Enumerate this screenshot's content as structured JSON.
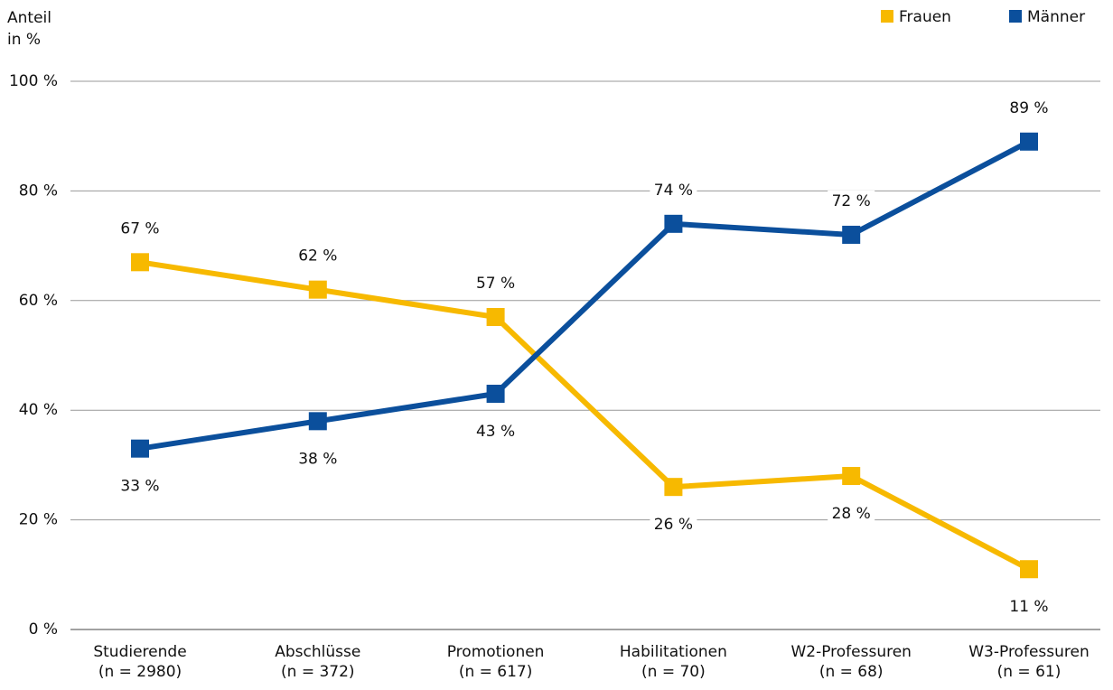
{
  "chart_data": {
    "type": "line",
    "y_label": [
      "Anteil",
      "in %"
    ],
    "categories": [
      [
        "Studierende",
        "(n = 2980)"
      ],
      [
        "Abschlüsse",
        "(n = 372)"
      ],
      [
        "Promotionen",
        "(n = 617)"
      ],
      [
        "Habilitationen",
        "(n = 70)"
      ],
      [
        "W2-Professuren",
        "(n = 68)"
      ],
      [
        "W3-Professuren",
        "(n = 61)"
      ]
    ],
    "series": [
      {
        "name": "Frauen",
        "color": "#f7b900",
        "values": [
          67,
          62,
          57,
          26,
          28,
          11
        ],
        "value_labels": [
          "67 %",
          "62 %",
          "57 %",
          "26 %",
          "28 %",
          "11 %"
        ]
      },
      {
        "name": "Männer",
        "color": "#0b4f9c",
        "values": [
          33,
          38,
          43,
          74,
          72,
          89
        ],
        "value_labels": [
          "33 %",
          "38 %",
          "43 %",
          "74 %",
          "72 %",
          "89 %"
        ]
      }
    ],
    "ylim": [
      0,
      100
    ],
    "yticks": [
      {
        "value": 0,
        "label": "0 %"
      },
      {
        "value": 20,
        "label": "20 %"
      },
      {
        "value": 40,
        "label": "40 %"
      },
      {
        "value": 60,
        "label": "60 %"
      },
      {
        "value": 80,
        "label": "80 %"
      },
      {
        "value": 100,
        "label": "100 %"
      }
    ],
    "grid": true,
    "legend": "top-right"
  }
}
